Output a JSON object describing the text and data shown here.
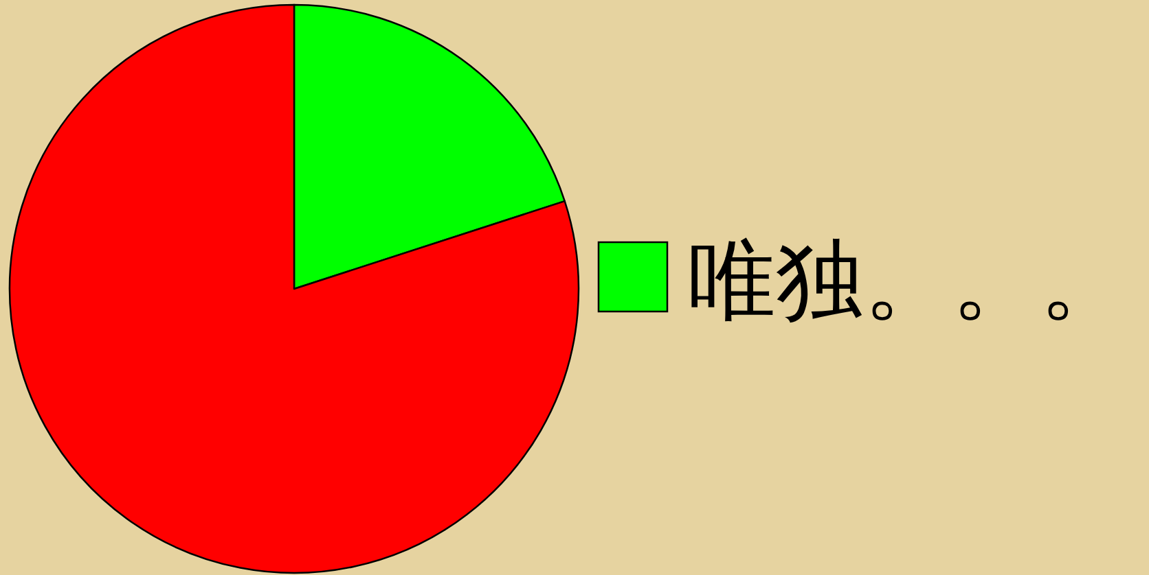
{
  "chart_data": {
    "type": "pie",
    "categories": [
      "唯独。。。",
      null
    ],
    "values": [
      20,
      80
    ],
    "colors": [
      "#00ff00",
      "#ff0000"
    ],
    "legend": "right"
  }
}
